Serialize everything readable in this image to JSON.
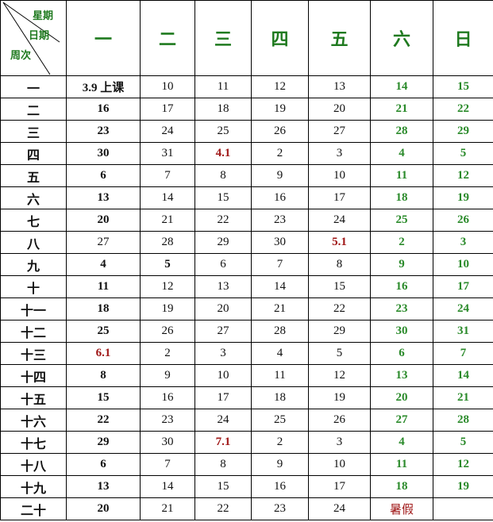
{
  "header": {
    "corner": {
      "weekday": "星期",
      "date": "日期",
      "week": "周次"
    },
    "days": [
      "一",
      "二",
      "三",
      "四",
      "五",
      "六",
      "日"
    ]
  },
  "colors": {
    "weekend": "#2a8a2a",
    "highlight": "#a01818"
  },
  "rows": [
    {
      "week": "一",
      "cells": [
        [
          "3.9 上课",
          "b"
        ],
        [
          "10",
          ""
        ],
        [
          "11",
          ""
        ],
        [
          "12",
          ""
        ],
        [
          "13",
          ""
        ],
        [
          "14",
          "g"
        ],
        [
          "15",
          "g"
        ]
      ]
    },
    {
      "week": "二",
      "cells": [
        [
          "16",
          "b"
        ],
        [
          "17",
          ""
        ],
        [
          "18",
          ""
        ],
        [
          "19",
          ""
        ],
        [
          "20",
          ""
        ],
        [
          "21",
          "g"
        ],
        [
          "22",
          "g"
        ]
      ]
    },
    {
      "week": "三",
      "cells": [
        [
          "23",
          "b"
        ],
        [
          "24",
          ""
        ],
        [
          "25",
          ""
        ],
        [
          "26",
          ""
        ],
        [
          "27",
          ""
        ],
        [
          "28",
          "g"
        ],
        [
          "29",
          "g"
        ]
      ]
    },
    {
      "week": "四",
      "cells": [
        [
          "30",
          "b"
        ],
        [
          "31",
          ""
        ],
        [
          "4.1",
          "r"
        ],
        [
          "2",
          ""
        ],
        [
          "3",
          ""
        ],
        [
          "4",
          "g"
        ],
        [
          "5",
          "g"
        ]
      ]
    },
    {
      "week": "五",
      "cells": [
        [
          "6",
          "b"
        ],
        [
          "7",
          ""
        ],
        [
          "8",
          ""
        ],
        [
          "9",
          ""
        ],
        [
          "10",
          ""
        ],
        [
          "11",
          "g"
        ],
        [
          "12",
          "g"
        ]
      ]
    },
    {
      "week": "六",
      "cells": [
        [
          "13",
          "b"
        ],
        [
          "14",
          ""
        ],
        [
          "15",
          ""
        ],
        [
          "16",
          ""
        ],
        [
          "17",
          ""
        ],
        [
          "18",
          "g"
        ],
        [
          "19",
          "g"
        ]
      ]
    },
    {
      "week": "七",
      "cells": [
        [
          "20",
          "b"
        ],
        [
          "21",
          ""
        ],
        [
          "22",
          ""
        ],
        [
          "23",
          ""
        ],
        [
          "24",
          ""
        ],
        [
          "25",
          "g"
        ],
        [
          "26",
          "g"
        ]
      ]
    },
    {
      "week": "八",
      "cells": [
        [
          "27",
          ""
        ],
        [
          "28",
          ""
        ],
        [
          "29",
          ""
        ],
        [
          "30",
          ""
        ],
        [
          "5.1",
          "r"
        ],
        [
          "2",
          "g"
        ],
        [
          "3",
          "g"
        ]
      ]
    },
    {
      "week": "九",
      "cells": [
        [
          "4",
          "b"
        ],
        [
          "5",
          "b"
        ],
        [
          "6",
          ""
        ],
        [
          "7",
          ""
        ],
        [
          "8",
          ""
        ],
        [
          "9",
          "g"
        ],
        [
          "10",
          "g"
        ]
      ]
    },
    {
      "week": "十",
      "cells": [
        [
          "11",
          "b"
        ],
        [
          "12",
          ""
        ],
        [
          "13",
          ""
        ],
        [
          "14",
          ""
        ],
        [
          "15",
          ""
        ],
        [
          "16",
          "g"
        ],
        [
          "17",
          "g"
        ]
      ]
    },
    {
      "week": "十一",
      "cells": [
        [
          "18",
          "b"
        ],
        [
          "19",
          ""
        ],
        [
          "20",
          ""
        ],
        [
          "21",
          ""
        ],
        [
          "22",
          ""
        ],
        [
          "23",
          "g"
        ],
        [
          "24",
          "g"
        ]
      ]
    },
    {
      "week": "十二",
      "cells": [
        [
          "25",
          "b"
        ],
        [
          "26",
          ""
        ],
        [
          "27",
          ""
        ],
        [
          "28",
          ""
        ],
        [
          "29",
          ""
        ],
        [
          "30",
          "g"
        ],
        [
          "31",
          "g"
        ]
      ]
    },
    {
      "week": "十三",
      "cells": [
        [
          "6.1",
          "r"
        ],
        [
          "2",
          ""
        ],
        [
          "3",
          ""
        ],
        [
          "4",
          ""
        ],
        [
          "5",
          ""
        ],
        [
          "6",
          "g"
        ],
        [
          "7",
          "g"
        ]
      ]
    },
    {
      "week": "十四",
      "cells": [
        [
          "8",
          "b"
        ],
        [
          "9",
          ""
        ],
        [
          "10",
          ""
        ],
        [
          "11",
          ""
        ],
        [
          "12",
          ""
        ],
        [
          "13",
          "g"
        ],
        [
          "14",
          "g"
        ]
      ]
    },
    {
      "week": "十五",
      "cells": [
        [
          "15",
          "b"
        ],
        [
          "16",
          ""
        ],
        [
          "17",
          ""
        ],
        [
          "18",
          ""
        ],
        [
          "19",
          ""
        ],
        [
          "20",
          "g"
        ],
        [
          "21",
          "g"
        ]
      ]
    },
    {
      "week": "十六",
      "cells": [
        [
          "22",
          "b"
        ],
        [
          "23",
          ""
        ],
        [
          "24",
          ""
        ],
        [
          "25",
          ""
        ],
        [
          "26",
          ""
        ],
        [
          "27",
          "g"
        ],
        [
          "28",
          "g"
        ]
      ]
    },
    {
      "week": "十七",
      "cells": [
        [
          "29",
          "b"
        ],
        [
          "30",
          ""
        ],
        [
          "7.1",
          "r"
        ],
        [
          "2",
          ""
        ],
        [
          "3",
          ""
        ],
        [
          "4",
          "g"
        ],
        [
          "5",
          "g"
        ]
      ]
    },
    {
      "week": "十八",
      "cells": [
        [
          "6",
          "b"
        ],
        [
          "7",
          ""
        ],
        [
          "8",
          ""
        ],
        [
          "9",
          ""
        ],
        [
          "10",
          ""
        ],
        [
          "11",
          "g"
        ],
        [
          "12",
          "g"
        ]
      ]
    },
    {
      "week": "十九",
      "cells": [
        [
          "13",
          "b"
        ],
        [
          "14",
          ""
        ],
        [
          "15",
          ""
        ],
        [
          "16",
          ""
        ],
        [
          "17",
          ""
        ],
        [
          "18",
          "g"
        ],
        [
          "19",
          "g"
        ]
      ]
    },
    {
      "week": "二十",
      "cells": [
        [
          "20",
          "b"
        ],
        [
          "21",
          ""
        ],
        [
          "22",
          ""
        ],
        [
          "23",
          ""
        ],
        [
          "24",
          ""
        ],
        [
          "暑假",
          "rn"
        ],
        [
          "",
          ""
        ]
      ]
    }
  ]
}
